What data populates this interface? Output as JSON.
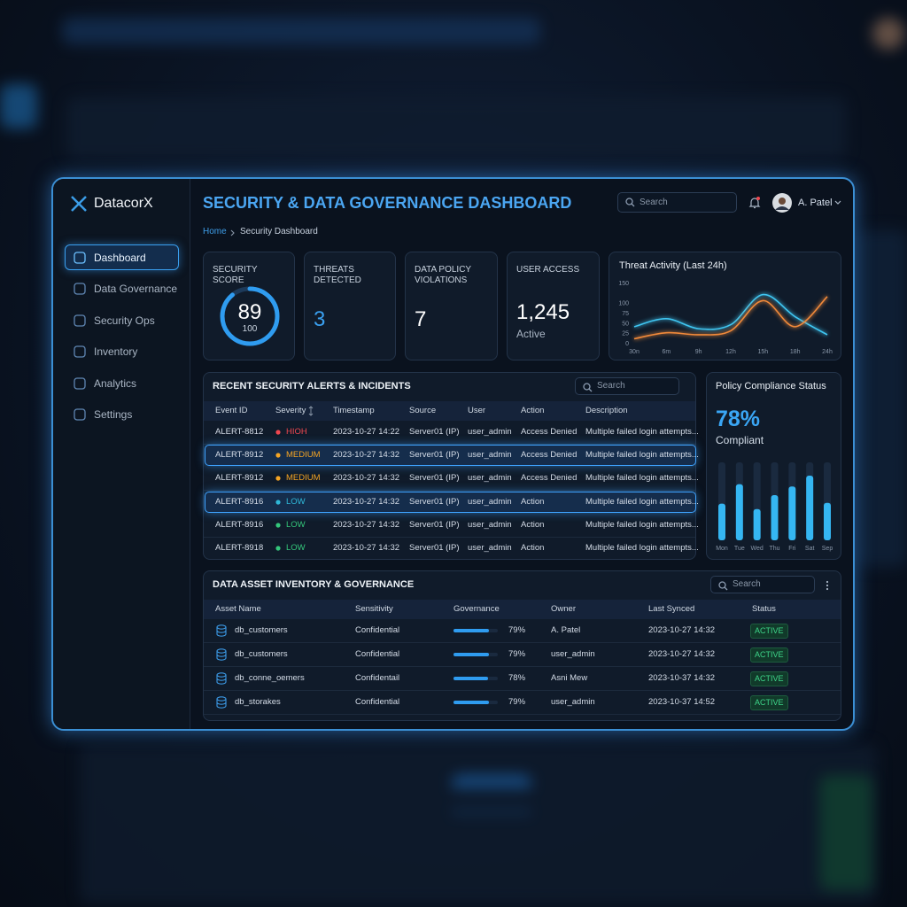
{
  "sidebar": {
    "brand": "DatacorX",
    "nav": [
      "Dashboard",
      "Data Governance",
      "Security Ops",
      "Inventory",
      "Analytics",
      "Settings"
    ],
    "active": 0
  },
  "header": {
    "title": "SECURITY & DATA GOVERNANCE DASHBOARD",
    "search_placeholder": "Search",
    "user": "A. Patel"
  },
  "breadcrumb": [
    "Home",
    "Security Dashboard"
  ],
  "kpis": {
    "security_score": {
      "label": "SECURITY SCORE",
      "value": 89,
      "max": 100
    },
    "threats": {
      "label": "THREATS DETECTED",
      "value": 3
    },
    "policy_violations": {
      "label": "DATA POLICY VIOLATIONS",
      "value": 7
    },
    "user_access": {
      "label": "USER ACCESS",
      "value": 1245,
      "value_label": "1,245",
      "sub": "Active"
    }
  },
  "chart_data": [
    {
      "type": "line",
      "title": "Threat Activity (Last 24h)",
      "x": [
        "30n",
        "6m",
        "9h",
        "12h",
        "15h",
        "18h",
        "24h"
      ],
      "series": [
        {
          "color": "#3fc6f2",
          "values": [
            40,
            60,
            35,
            45,
            120,
            65,
            20
          ]
        },
        {
          "color": "#f0893a",
          "values": [
            10,
            25,
            20,
            30,
            105,
            40,
            115
          ]
        }
      ],
      "ylim": [
        0,
        150
      ],
      "yticks": [
        0,
        25,
        50,
        75,
        100,
        150
      ]
    },
    {
      "type": "bar",
      "title": "Policy Compliance Status",
      "summary": "78%",
      "summary_text": "Compliant",
      "categories": [
        "Mon",
        "Tue",
        "Wed",
        "Thu",
        "Fri",
        "Sat",
        "Sep"
      ],
      "values": [
        47,
        72,
        40,
        58,
        69,
        83,
        48
      ],
      "color": "#35b6f2",
      "ylim": [
        0,
        100
      ]
    }
  ],
  "alerts": {
    "title": "RECENT SECURITY ALERTS & INCIDENTS",
    "search_placeholder": "Search",
    "columns": [
      "Event ID",
      "Severity",
      "Timestamp",
      "Source",
      "User",
      "Action",
      "Description"
    ],
    "rows": [
      {
        "cells": [
          "ALERT-8812",
          "HIOH",
          "2023-10-27 14:22",
          "Server01 (IP)",
          "user_admin",
          "Access Denied",
          "Multiple failed login attempts..."
        ],
        "severity_color": "#f0474f",
        "highlighted": false
      },
      {
        "cells": [
          "ALERT-8912",
          "MEDIUM",
          "2023-10-27 14:32",
          "Server01 (IP)",
          "user_admin",
          "Access Denied",
          "Multiple failed login attempts..."
        ],
        "severity_color": "#f5a524",
        "highlighted": true
      },
      {
        "cells": [
          "ALERT-8912",
          "MEDIUM",
          "2023-10-27 14:32",
          "Server01 (IP)",
          "user_admin",
          "Access Denied",
          "Multiple failed login attempts..."
        ],
        "severity_color": "#f5a524",
        "highlighted": false
      },
      {
        "cells": [
          "ALERT-8916",
          "LOW",
          "2023-10-27 14:32",
          "Server01 (IP)",
          "user_admin",
          "Action",
          "Multiple failed login attempts..."
        ],
        "severity_color": "#2fb8d8",
        "highlighted": true
      },
      {
        "cells": [
          "ALERT-8916",
          "LOW",
          "2023-10-27 14:32",
          "Server01 (IP)",
          "user_admin",
          "Action",
          "Multiple failed login attempts..."
        ],
        "severity_color": "#34c77b",
        "highlighted": false
      },
      {
        "cells": [
          "ALERT-8918",
          "LOW",
          "2023-10-27 14:32",
          "Server01 (IP)",
          "user_admin",
          "Action",
          "Multiple failed login attempts..."
        ],
        "severity_color": "#34c77b",
        "highlighted": false
      }
    ]
  },
  "assets": {
    "title": "DATA ASSET INVENTORY & GOVERNANCE",
    "search_placeholder": "Search",
    "columns": [
      "Asset Name",
      "Sensitivity",
      "Governance",
      "Owner",
      "Last Synced",
      "Status"
    ],
    "governance_max": 100,
    "rows": [
      {
        "name": "db_customers",
        "sensitivity": "Confidential",
        "governance": 79,
        "governance_label": "79%",
        "owner": "A. Patel",
        "last_synced": "2023-10-27 14:32",
        "status": "ACTIVE"
      },
      {
        "name": "db_customers",
        "sensitivity": "Confidential",
        "governance": 79,
        "governance_label": "79%",
        "owner": "user_admin",
        "last_synced": "2023-10-27 14:32",
        "status": "ACTIVE"
      },
      {
        "name": "db_conne_oemers",
        "sensitivity": "Confidentail",
        "governance": 78,
        "governance_label": "78%",
        "owner": "Asni Mew",
        "last_synced": "2023-10-37 14:32",
        "status": "ACTIVE"
      },
      {
        "name": "db_storakes",
        "sensitivity": "Confidential",
        "governance": 79,
        "governance_label": "79%",
        "owner": "user_admin",
        "last_synced": "2023-10-37 14:52",
        "status": "ACTIVE"
      }
    ]
  }
}
